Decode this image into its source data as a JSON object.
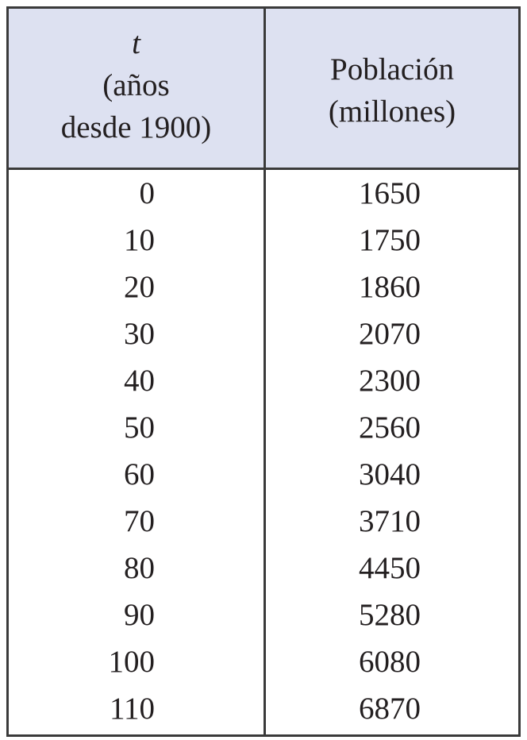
{
  "table": {
    "header": {
      "col1": [
        "t",
        "(años",
        "desde 1900)"
      ],
      "col2": [
        "Población",
        "(millones)"
      ]
    },
    "rows": [
      {
        "t": "0",
        "population": "1650"
      },
      {
        "t": "10",
        "population": "1750"
      },
      {
        "t": "20",
        "population": "1860"
      },
      {
        "t": "30",
        "population": "2070"
      },
      {
        "t": "40",
        "population": "2300"
      },
      {
        "t": "50",
        "population": "2560"
      },
      {
        "t": "60",
        "population": "3040"
      },
      {
        "t": "70",
        "population": "3710"
      },
      {
        "t": "80",
        "population": "4450"
      },
      {
        "t": "90",
        "population": "5280"
      },
      {
        "t": "100",
        "population": "6080"
      },
      {
        "t": "110",
        "population": "6870"
      }
    ],
    "colors": {
      "header_background": "#dde1f1",
      "border": "#3a3a3a",
      "text": "#231f20"
    }
  }
}
